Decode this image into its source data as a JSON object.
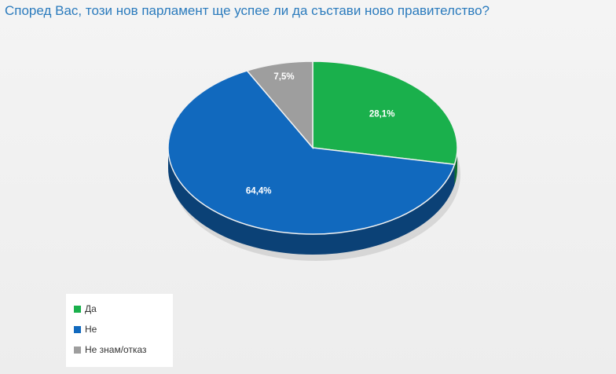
{
  "chart_data": {
    "type": "pie",
    "title": "Според Вас, този нов парламент ще успее ли да състави ново правителство?",
    "slices": [
      {
        "label": "Да",
        "value": 28.1,
        "display": "28,1%",
        "color": "#1ab04c"
      },
      {
        "label": "Не",
        "value": 64.4,
        "display": "64,4%",
        "color": "#1169be"
      },
      {
        "label": "Не знам/отказ",
        "value": 7.5,
        "display": "7,5%",
        "color": "#9e9e9e"
      }
    ],
    "legend_position": "bottom-left",
    "style": "3d"
  }
}
